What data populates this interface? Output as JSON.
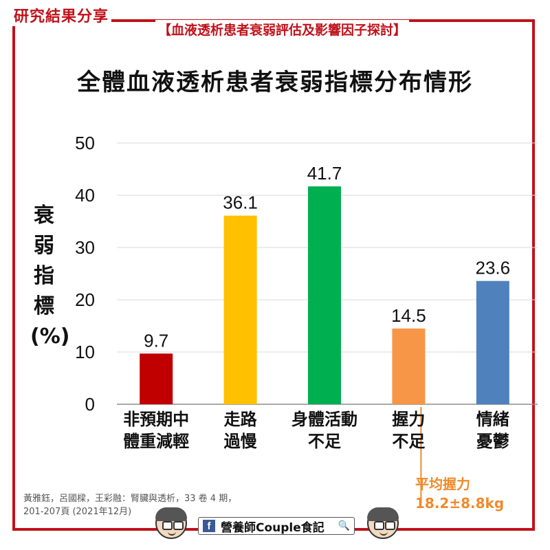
{
  "header": {
    "tag": "研究結果分享",
    "subtitle": "【血液透析患者衰弱評估及影響因子探討】"
  },
  "chart_data": {
    "type": "bar",
    "title": "全體血液透析患者衰弱指標分布情形",
    "ylabel": "衰弱指標(%)",
    "ylim": [
      0,
      50
    ],
    "yticks": [
      0,
      10,
      20,
      30,
      40,
      50
    ],
    "grid": true,
    "categories": [
      [
        "非預期中",
        "體重減輕"
      ],
      [
        "走路",
        "過慢"
      ],
      [
        "身體活動",
        "不足"
      ],
      [
        "握力",
        "不足"
      ],
      [
        "情緒",
        "憂鬱"
      ]
    ],
    "values": [
      9.7,
      36.1,
      41.7,
      14.5,
      23.6
    ],
    "data_labels": [
      "9.7",
      "36.1",
      "41.7",
      "14.5",
      "23.6"
    ],
    "colors": [
      "#c00000",
      "#ffc000",
      "#00b050",
      "#f79646",
      "#4f81bd"
    ]
  },
  "annotation": {
    "line1": "平均握力",
    "line2": "18.2±8.8kg",
    "color": "#f08a2b"
  },
  "citation": {
    "line1": "黃雅鈺，呂國樑，王彩融：腎臟與透析，33 卷 4 期，",
    "line2": "201-207頁 (2021年12月)"
  },
  "footer": {
    "facebook_icon": "facebook-icon",
    "page_name": "營養師Couple食記",
    "search_icon": "search-icon"
  }
}
